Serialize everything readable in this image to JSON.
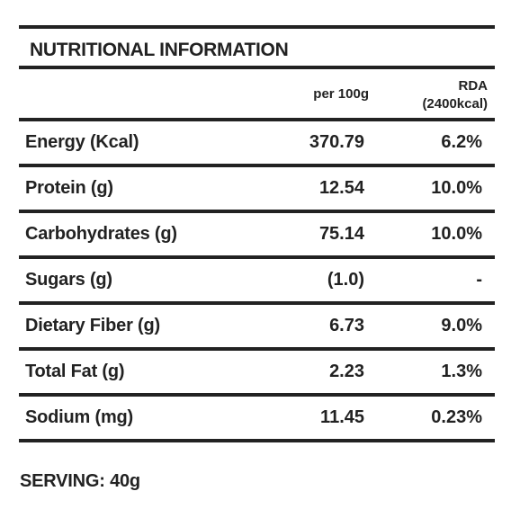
{
  "title": "NUTRITIONAL INFORMATION",
  "headers": {
    "per": "per 100g",
    "rda_line1": "RDA",
    "rda_line2": "(2400kcal)"
  },
  "rows": [
    {
      "label": "Energy (Kcal)",
      "per": "370.79",
      "rda": "6.2%"
    },
    {
      "label": "Protein (g)",
      "per": "12.54",
      "rda": "10.0%"
    },
    {
      "label": "Carbohydrates (g)",
      "per": "75.14",
      "rda": "10.0%"
    },
    {
      "label": "Sugars (g)",
      "per": "(1.0)",
      "rda": "-"
    },
    {
      "label": "Dietary Fiber (g)",
      "per": "6.73",
      "rda": "9.0%"
    },
    {
      "label": "Total Fat (g)",
      "per": "2.23",
      "rda": "1.3%"
    },
    {
      "label": "Sodium (mg)",
      "per": "11.45",
      "rda": "0.23%"
    }
  ],
  "serving": "SERVING: 40g"
}
